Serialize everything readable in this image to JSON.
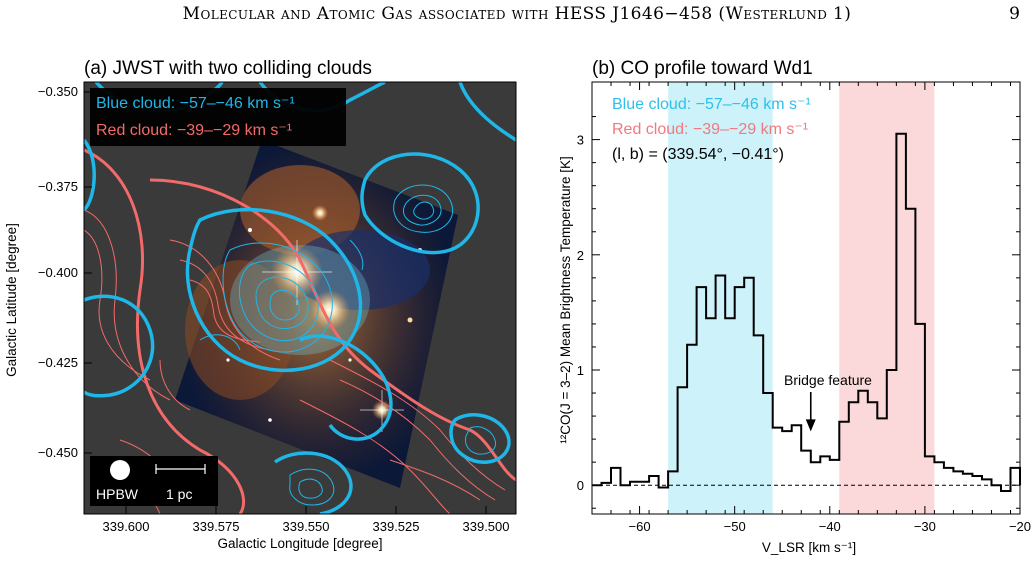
{
  "page": {
    "running_title": "Molecular and Atomic Gas associated with HESS J1646−458 (Westerlund 1)",
    "page_number": "9"
  },
  "panel_a": {
    "title": "(a) JWST with two colliding clouds",
    "legend_blue": "Blue cloud: −57–−46 km s⁻¹",
    "legend_red": "Red cloud: −39–−29 km s⁻¹",
    "xlabel": "Galactic Longitude [degree]",
    "ylabel": "Galactic Latitude [degree]",
    "xticks": [
      "339.600",
      "339.575",
      "339.550",
      "339.525",
      "339.500"
    ],
    "yticks": [
      "−0.350",
      "−0.375",
      "−0.400",
      "−0.425",
      "−0.450"
    ],
    "beam_label": "HPBW",
    "scale_label": "1 pc",
    "colors": {
      "blue_contour": "#1fb6e8",
      "red_contour": "#f26a6a",
      "background": "#3a3a3a"
    }
  },
  "panel_b": {
    "title": "(b) CO profile toward Wd1",
    "legend_blue": "Blue cloud: −57–−46 km s⁻¹",
    "legend_red": "Red cloud: −39–−29 km s⁻¹",
    "position_label": "(l, b) = (339.54°, −0.41°)",
    "annotation": "Bridge feature",
    "colors": {
      "blue_band": "#cdf2fa",
      "red_band": "#fbd9da",
      "blue_text": "#2fc0ea",
      "red_text": "#f07a7e"
    }
  },
  "chart_data": {
    "type": "line",
    "title": "(b) CO profile toward Wd1",
    "xlabel": "V_LSR [km s⁻¹]",
    "ylabel": "¹²CO(J = 3–2) Mean Brightness Temperature [K]",
    "xlim": [
      -65,
      -20
    ],
    "ylim": [
      -0.25,
      3.5
    ],
    "xticks": [
      -60,
      -50,
      -40,
      -30,
      -20
    ],
    "xtick_labels": [
      "−60",
      "−50",
      "−40",
      "−30",
      "−20"
    ],
    "yticks": [
      0,
      1,
      2,
      3
    ],
    "ytick_labels": [
      "0",
      "1",
      "2",
      "3"
    ],
    "shaded_ranges": [
      {
        "name": "Blue cloud",
        "from": -57,
        "to": -46
      },
      {
        "name": "Red cloud",
        "from": -39,
        "to": -29
      }
    ],
    "zero_line": "dashed",
    "series": [
      {
        "style": "step",
        "x": [
          -65,
          -64,
          -63,
          -62,
          -61,
          -60,
          -59,
          -58,
          -57,
          -56,
          -55,
          -54,
          -53,
          -52,
          -51,
          -50,
          -49,
          -48,
          -47,
          -46,
          -45,
          -44,
          -43,
          -42,
          -41,
          -40,
          -39,
          -38,
          -37,
          -36,
          -35,
          -34,
          -33,
          -32,
          -31,
          -30,
          -29,
          -28,
          -27,
          -26,
          -25,
          -24,
          -23,
          -22,
          -21,
          -20
        ],
        "y": [
          0.0,
          0.02,
          0.15,
          0.0,
          0.03,
          0.03,
          0.08,
          -0.02,
          0.12,
          0.85,
          1.22,
          1.72,
          1.45,
          1.82,
          1.45,
          1.72,
          1.8,
          1.3,
          0.8,
          0.5,
          0.47,
          0.52,
          0.3,
          0.2,
          0.25,
          0.22,
          0.55,
          0.72,
          0.82,
          0.72,
          0.58,
          1.0,
          3.05,
          2.4,
          1.4,
          0.25,
          0.2,
          0.15,
          0.12,
          0.1,
          0.08,
          0.05,
          0.0,
          -0.05,
          0.15,
          0.0
        ]
      }
    ],
    "annotations": [
      {
        "text": "Bridge feature",
        "x": -42,
        "y": 0.45
      }
    ]
  }
}
